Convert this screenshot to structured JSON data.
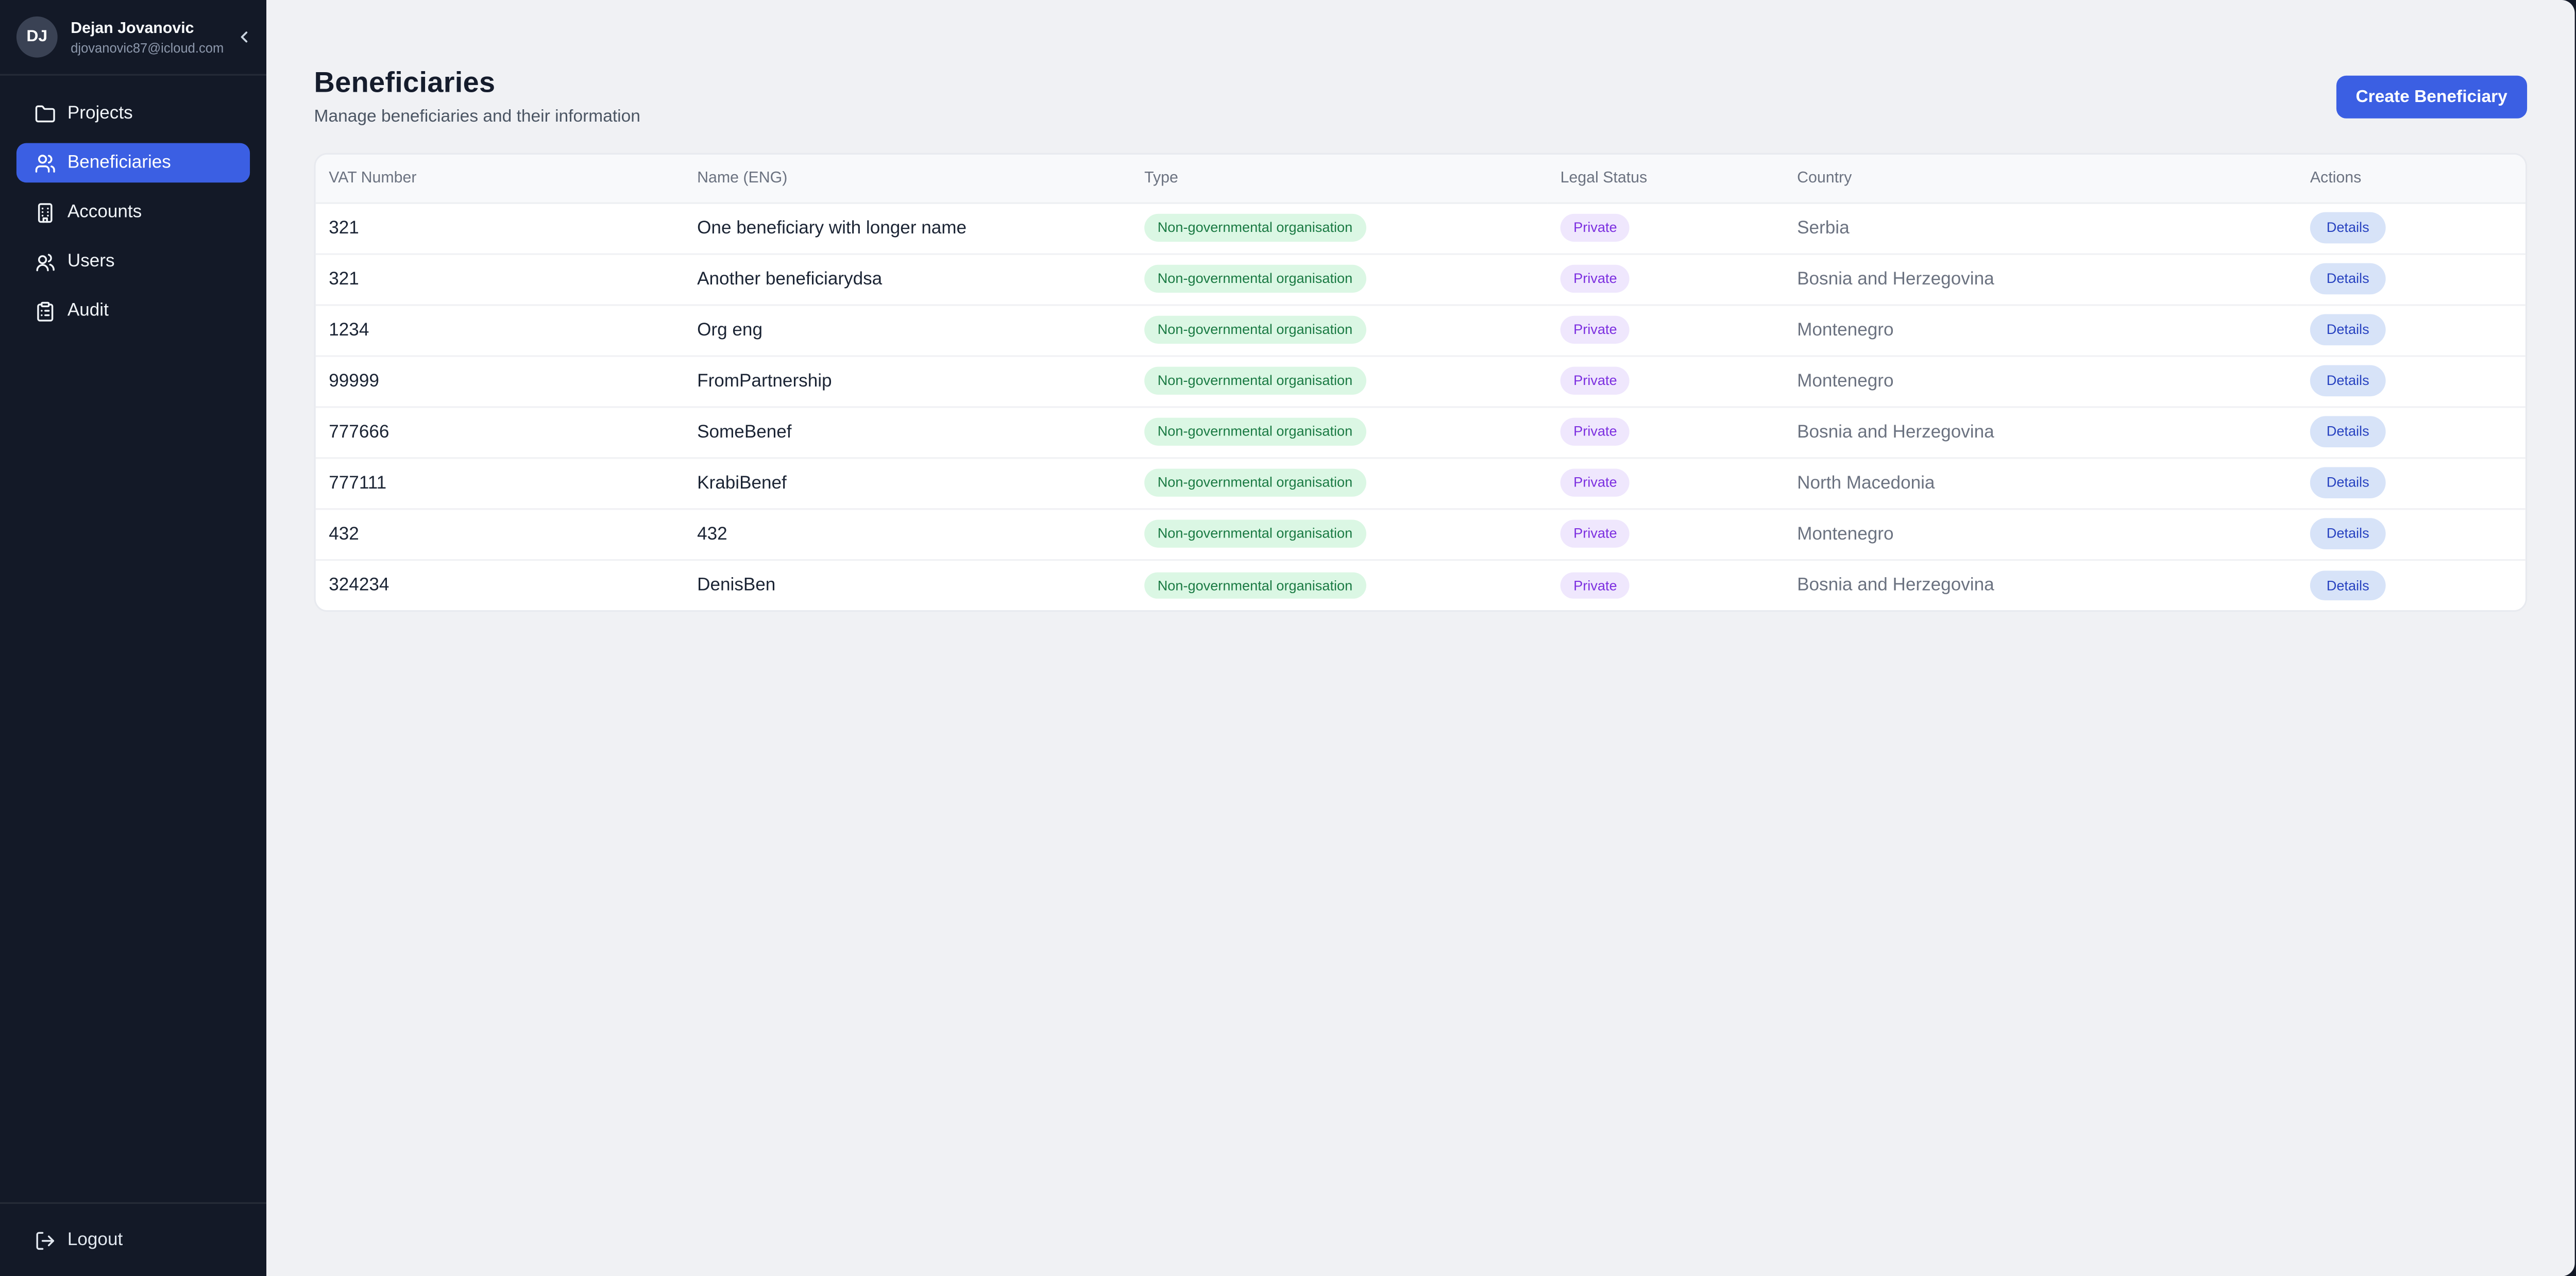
{
  "sidebar": {
    "user": {
      "initials": "DJ",
      "name": "Dejan Jovanovic",
      "email": "djovanovic87@icloud.com"
    },
    "items": [
      {
        "label": "Projects",
        "icon": "folder-icon",
        "active": false
      },
      {
        "label": "Beneficiaries",
        "icon": "users-group-icon",
        "active": true
      },
      {
        "label": "Accounts",
        "icon": "building-icon",
        "active": false
      },
      {
        "label": "Users",
        "icon": "users-icon",
        "active": false
      },
      {
        "label": "Audit",
        "icon": "clipboard-list-icon",
        "active": false
      }
    ],
    "logout_label": "Logout"
  },
  "header": {
    "title": "Beneficiaries",
    "subtitle": "Manage beneficiaries and their information",
    "create_button_label": "Create Beneficiary"
  },
  "table": {
    "columns": [
      "VAT Number",
      "Name (ENG)",
      "Type",
      "Legal Status",
      "Country",
      "Actions"
    ],
    "rows": [
      {
        "vat": "321",
        "name": "One beneficiary with longer name",
        "type": "Non-governmental organisation",
        "legal_status": "Private",
        "country": "Serbia",
        "action": "Details"
      },
      {
        "vat": "321",
        "name": "Another beneficiarydsa",
        "type": "Non-governmental organisation",
        "legal_status": "Private",
        "country": "Bosnia and Herzegovina",
        "action": "Details"
      },
      {
        "vat": "1234",
        "name": "Org eng",
        "type": "Non-governmental organisation",
        "legal_status": "Private",
        "country": "Montenegro",
        "action": "Details"
      },
      {
        "vat": "99999",
        "name": "FromPartnership",
        "type": "Non-governmental organisation",
        "legal_status": "Private",
        "country": "Montenegro",
        "action": "Details"
      },
      {
        "vat": "777666",
        "name": "SomeBenef",
        "type": "Non-governmental organisation",
        "legal_status": "Private",
        "country": "Bosnia and Herzegovina",
        "action": "Details"
      },
      {
        "vat": "777111",
        "name": "KrabiBenef",
        "type": "Non-governmental organisation",
        "legal_status": "Private",
        "country": "North Macedonia",
        "action": "Details"
      },
      {
        "vat": "432",
        "name": "432",
        "type": "Non-governmental organisation",
        "legal_status": "Private",
        "country": "Montenegro",
        "action": "Details"
      },
      {
        "vat": "324234",
        "name": "DenisBen",
        "type": "Non-governmental organisation",
        "legal_status": "Private",
        "country": "Bosnia and Herzegovina",
        "action": "Details"
      }
    ]
  },
  "colors": {
    "accent_blue": "#3b5fe3",
    "sidebar_bg": "#131927",
    "main_bg": "#f0f1f4",
    "type_badge_bg": "#dbf7e4",
    "type_badge_text": "#1a7a43",
    "status_badge_bg": "#efe7fd",
    "status_badge_text": "#7c2fe0",
    "action_badge_bg": "#d7e3f8",
    "action_badge_text": "#2742c0"
  }
}
